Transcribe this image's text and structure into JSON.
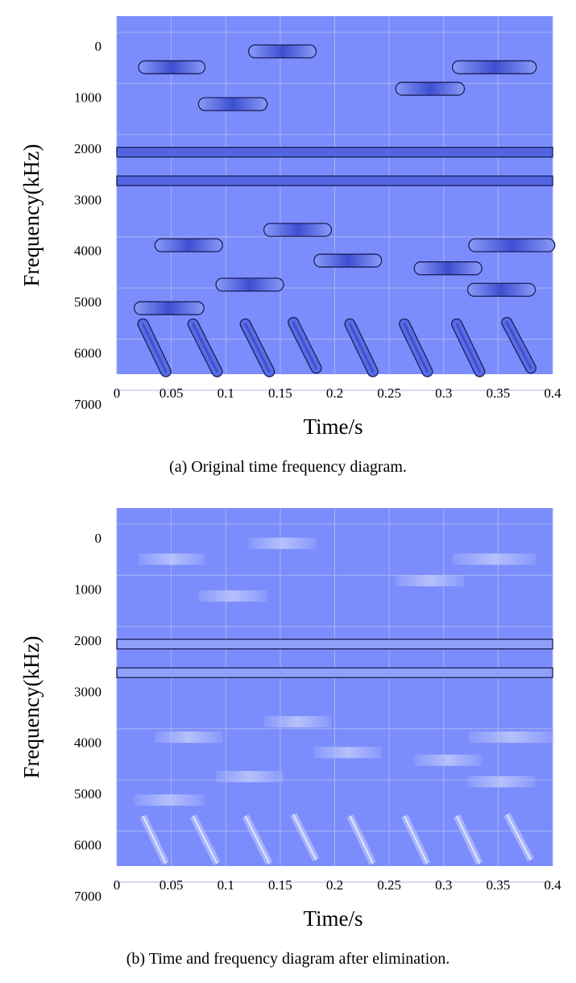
{
  "colors": {
    "plot_bg": "#7b8dfc",
    "grid": "#aab3ee",
    "signal_fill": "#6a7cf0",
    "signal_stroke": "#1a1f5a",
    "faded_signal": "#b9c3fb"
  },
  "chart_data": [
    {
      "type": "time-frequency",
      "xlabel": "Time/s",
      "ylabel": "Frequency(kHz)",
      "xlim": [
        0,
        0.4
      ],
      "ylim": [
        0,
        7000
      ],
      "y_inverted": true,
      "x_ticks": [
        "0",
        "0.05",
        "0.1",
        "0.15",
        "0.2",
        "0.25",
        "0.3",
        "0.35",
        "0.4"
      ],
      "y_ticks": [
        "0",
        "1000",
        "2000",
        "3000",
        "4000",
        "5000",
        "6000",
        "7000"
      ],
      "caption_label": "(a)",
      "caption": "Original time frequency diagram.",
      "grid": true,
      "continuous_tones": [
        {
          "freq": 2660,
          "t_start": 0,
          "t_end": 0.4
        },
        {
          "freq": 3220,
          "t_start": 0,
          "t_end": 0.4
        }
      ],
      "hop_pulses": [
        {
          "t_start": 0.02,
          "t_end": 0.081,
          "freq": 1000
        },
        {
          "t_start": 0.075,
          "t_end": 0.138,
          "freq": 1720
        },
        {
          "t_start": 0.121,
          "t_end": 0.183,
          "freq": 690
        },
        {
          "t_start": 0.035,
          "t_end": 0.097,
          "freq": 4480
        },
        {
          "t_start": 0.135,
          "t_end": 0.197,
          "freq": 4180
        },
        {
          "t_start": 0.091,
          "t_end": 0.153,
          "freq": 5250
        },
        {
          "t_start": 0.181,
          "t_end": 0.243,
          "freq": 4780
        },
        {
          "t_start": 0.016,
          "t_end": 0.08,
          "freq": 5710
        },
        {
          "t_start": 0.256,
          "t_end": 0.319,
          "freq": 1420
        },
        {
          "t_start": 0.308,
          "t_end": 0.385,
          "freq": 1000
        },
        {
          "t_start": 0.273,
          "t_end": 0.335,
          "freq": 4930
        },
        {
          "t_start": 0.323,
          "t_end": 0.402,
          "freq": 4480
        },
        {
          "t_start": 0.322,
          "t_end": 0.384,
          "freq": 5350
        }
      ],
      "chirps": [
        {
          "t_start": 0.024,
          "t_end": 0.045,
          "freq_start": 6020,
          "freq_end": 6950
        },
        {
          "t_start": 0.07,
          "t_end": 0.092,
          "freq_start": 6020,
          "freq_end": 6950
        },
        {
          "t_start": 0.118,
          "t_end": 0.14,
          "freq_start": 6020,
          "freq_end": 6950
        },
        {
          "t_start": 0.162,
          "t_end": 0.183,
          "freq_start": 5990,
          "freq_end": 6880
        },
        {
          "t_start": 0.214,
          "t_end": 0.235,
          "freq_start": 6020,
          "freq_end": 6950
        },
        {
          "t_start": 0.264,
          "t_end": 0.285,
          "freq_start": 6020,
          "freq_end": 6950
        },
        {
          "t_start": 0.312,
          "t_end": 0.333,
          "freq_start": 6020,
          "freq_end": 6950
        },
        {
          "t_start": 0.358,
          "t_end": 0.38,
          "freq_start": 5990,
          "freq_end": 6880
        }
      ],
      "faded": false
    },
    {
      "type": "time-frequency",
      "xlabel": "Time/s",
      "ylabel": "Frequency(kHz)",
      "xlim": [
        0,
        0.4
      ],
      "ylim": [
        0,
        7000
      ],
      "y_inverted": true,
      "x_ticks": [
        "0",
        "0.05",
        "0.1",
        "0.15",
        "0.2",
        "0.25",
        "0.3",
        "0.35",
        "0.4"
      ],
      "y_ticks": [
        "0",
        "1000",
        "2000",
        "3000",
        "4000",
        "5000",
        "6000",
        "7000"
      ],
      "caption_label": "(b)",
      "caption": "Time and frequency diagram after elimination.",
      "grid": true,
      "continuous_tones": [
        {
          "freq": 2660,
          "t_start": 0,
          "t_end": 0.4
        },
        {
          "freq": 3220,
          "t_start": 0,
          "t_end": 0.4
        }
      ],
      "hop_pulses": [
        {
          "t_start": 0.02,
          "t_end": 0.081,
          "freq": 1000
        },
        {
          "t_start": 0.075,
          "t_end": 0.138,
          "freq": 1720
        },
        {
          "t_start": 0.121,
          "t_end": 0.183,
          "freq": 690
        },
        {
          "t_start": 0.035,
          "t_end": 0.097,
          "freq": 4480
        },
        {
          "t_start": 0.135,
          "t_end": 0.197,
          "freq": 4180
        },
        {
          "t_start": 0.091,
          "t_end": 0.153,
          "freq": 5250
        },
        {
          "t_start": 0.181,
          "t_end": 0.243,
          "freq": 4780
        },
        {
          "t_start": 0.016,
          "t_end": 0.08,
          "freq": 5710
        },
        {
          "t_start": 0.256,
          "t_end": 0.319,
          "freq": 1420
        },
        {
          "t_start": 0.308,
          "t_end": 0.385,
          "freq": 1000
        },
        {
          "t_start": 0.273,
          "t_end": 0.335,
          "freq": 4930
        },
        {
          "t_start": 0.323,
          "t_end": 0.402,
          "freq": 4480
        },
        {
          "t_start": 0.322,
          "t_end": 0.384,
          "freq": 5350
        }
      ],
      "chirps": [
        {
          "t_start": 0.024,
          "t_end": 0.045,
          "freq_start": 6020,
          "freq_end": 6950
        },
        {
          "t_start": 0.07,
          "t_end": 0.092,
          "freq_start": 6020,
          "freq_end": 6950
        },
        {
          "t_start": 0.118,
          "t_end": 0.14,
          "freq_start": 6020,
          "freq_end": 6950
        },
        {
          "t_start": 0.162,
          "t_end": 0.183,
          "freq_start": 5990,
          "freq_end": 6880
        },
        {
          "t_start": 0.214,
          "t_end": 0.235,
          "freq_start": 6020,
          "freq_end": 6950
        },
        {
          "t_start": 0.264,
          "t_end": 0.285,
          "freq_start": 6020,
          "freq_end": 6950
        },
        {
          "t_start": 0.312,
          "t_end": 0.333,
          "freq_start": 6020,
          "freq_end": 6950
        },
        {
          "t_start": 0.358,
          "t_end": 0.38,
          "freq_start": 5990,
          "freq_end": 6880
        }
      ],
      "faded": true
    }
  ]
}
